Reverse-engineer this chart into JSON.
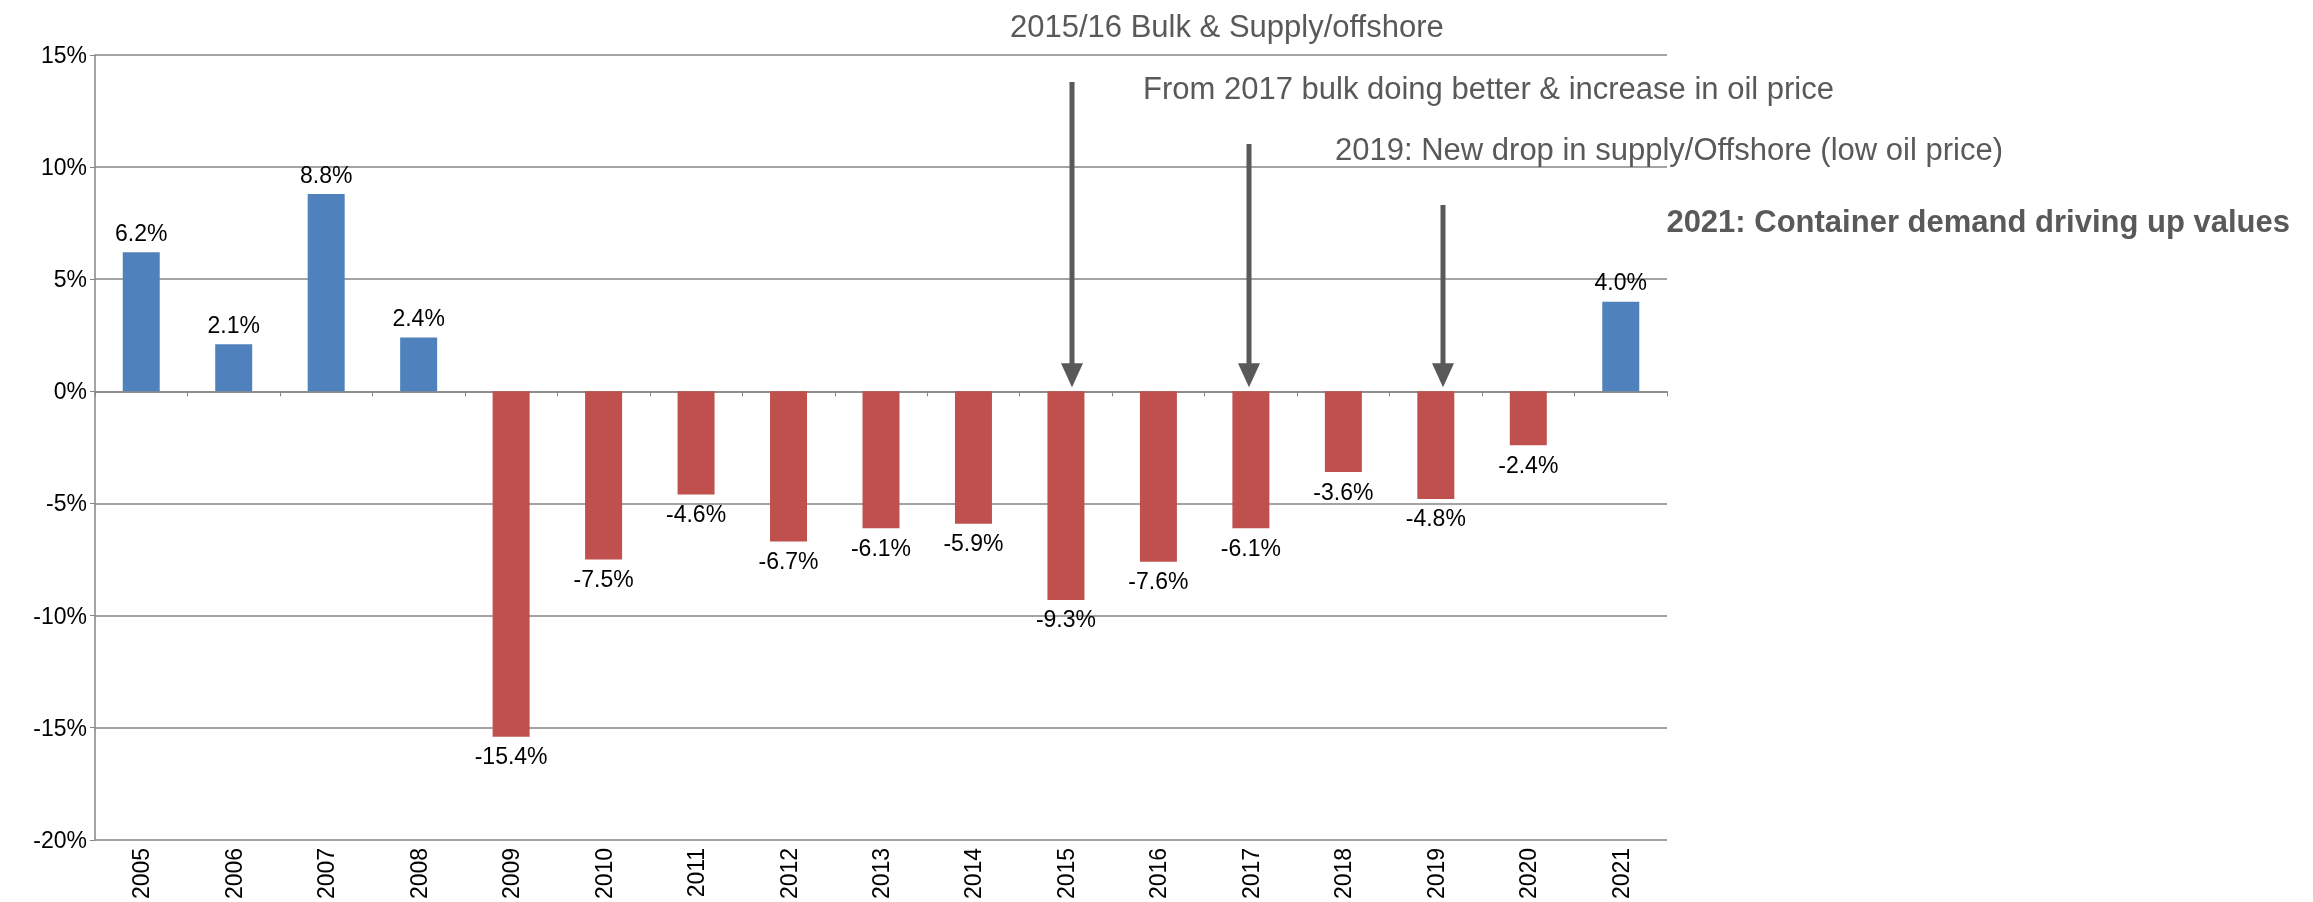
{
  "chart_data": {
    "type": "bar",
    "categories": [
      "2005",
      "2006",
      "2007",
      "2008",
      "2009",
      "2010",
      "2011",
      "2012",
      "2013",
      "2014",
      "2015",
      "2016",
      "2017",
      "2018",
      "2019",
      "2020",
      "2021"
    ],
    "values": [
      6.2,
      2.1,
      8.8,
      2.4,
      -15.4,
      -7.5,
      -4.6,
      -6.7,
      -6.1,
      -5.9,
      -9.3,
      -7.6,
      -6.1,
      -3.6,
      -4.8,
      -2.4,
      4.0
    ],
    "colors": [
      "#4f81bd",
      "#4f81bd",
      "#4f81bd",
      "#4f81bd",
      "#c0504d",
      "#c0504d",
      "#c0504d",
      "#c0504d",
      "#c0504d",
      "#c0504d",
      "#c0504d",
      "#c0504d",
      "#c0504d",
      "#c0504d",
      "#c0504d",
      "#c0504d",
      "#4f81bd"
    ],
    "value_labels": [
      "6.2%",
      "2.1%",
      "8.8%",
      "2.4%",
      "-15.4%",
      "-7.5%",
      "-4.6%",
      "-6.7%",
      "-6.1%",
      "-5.9%",
      "-9.3%",
      "-7.6%",
      "-6.1%",
      "-3.6%",
      "-4.8%",
      "-2.4%",
      "4.0%"
    ],
    "ylim": [
      -20,
      15
    ],
    "yticks": [
      {
        "value": -20,
        "label": "-20%"
      },
      {
        "value": -15,
        "label": "-15%"
      },
      {
        "value": -10,
        "label": "-10%"
      },
      {
        "value": -5,
        "label": "-5%"
      },
      {
        "value": 0,
        "label": "0%"
      },
      {
        "value": 5,
        "label": "5%"
      },
      {
        "value": 10,
        "label": "10%"
      },
      {
        "value": 15,
        "label": "15%"
      }
    ],
    "grid": "y",
    "annotations": [
      "2015/16 Bulk & Supply/offshore",
      "From 2017 bulk doing better & increase in oil price",
      "2019: New drop in supply/Offshore (low oil price)",
      "2021: Container demand driving up values"
    ]
  }
}
